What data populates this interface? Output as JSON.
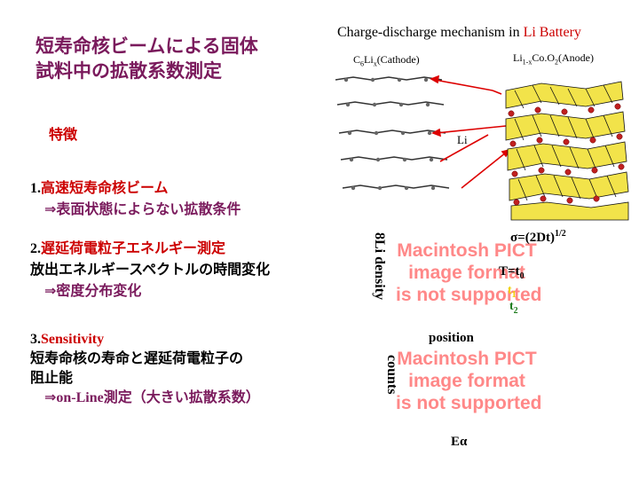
{
  "title": {
    "line1": "短寿命核ビームによる固体",
    "line2": "試料中の拡散系数測定"
  },
  "features_label": "特徴",
  "point1": {
    "num": "1.",
    "head": "高速短寿命核ビーム",
    "sub": "⇒表面状態によらない拡散条件"
  },
  "point2": {
    "num": "2.",
    "head": "遅延荷電粒子エネルギー測定",
    "line2": "放出エネルギースペクトルの時間変化",
    "line3": "⇒密度分布変化"
  },
  "point3": {
    "num": "3.",
    "head": "Sensitivity",
    "line2": "短寿命核の寿命と遅延荷電粒子の",
    "line3": "阻止能",
    "line4_arrow": "⇒",
    "line4_online": "on-Line",
    "line4_rest": "測定（大きい拡散系数）"
  },
  "diagram": {
    "title_main": "Charge-discharge  mechanism in ",
    "title_li": "Li Battery",
    "cathode_label": "C6Lix(Cathode)",
    "anode_label": "Li1-xCoO2(Anode)",
    "li_label": "Li"
  },
  "plot1": {
    "ylabel": "8Li density",
    "xlabel": "position",
    "sigma": "σ=(2Dt)",
    "sigma_exp": "1/2",
    "t0": "T=t0",
    "t1": "t1",
    "t2": "t2",
    "placeholder": [
      "Macintosh PICT",
      "image format",
      "is not supported"
    ]
  },
  "plot2": {
    "ylabel": "counts",
    "xlabel": "Eα",
    "placeholder": [
      "Macintosh PICT",
      "image format",
      "is not supported"
    ]
  },
  "colors": {
    "title": "#7a1a5c",
    "accent_red": "#cc0000",
    "green": "#1a7a1a",
    "arrow": "#dd0000"
  }
}
